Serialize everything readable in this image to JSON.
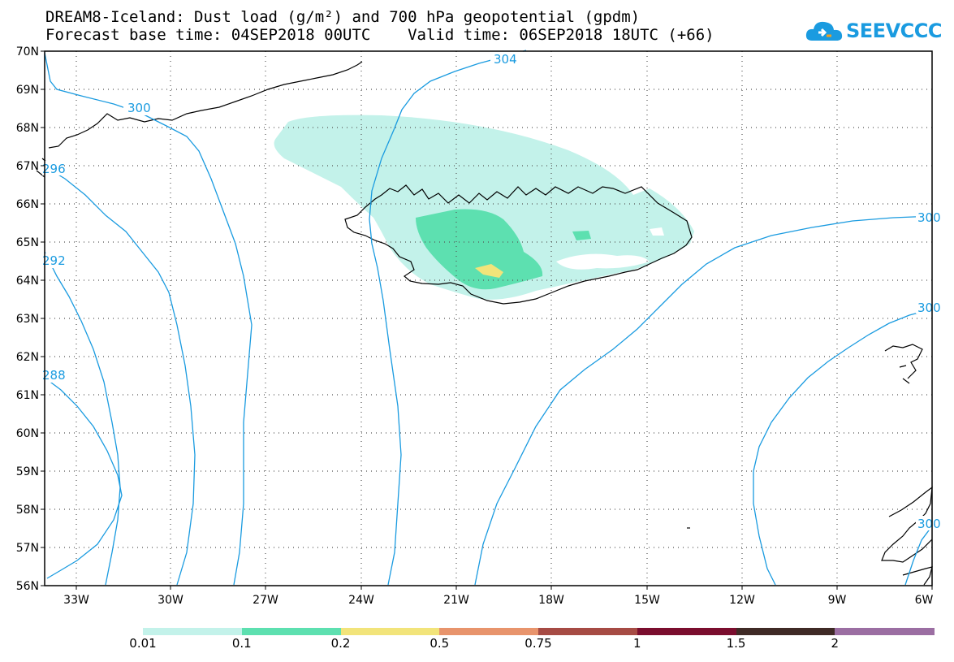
{
  "title_line1": "DREAM8-Iceland: Dust load (g/m²) and 700 hPa geopotential (gpdm)",
  "title_line2": "Forecast base time: 04SEP2018 00UTC    Valid time: 06SEP2018 18UTC (+66)",
  "logo_text": "SEEVCCC",
  "lat_labels": [
    "70N",
    "69N",
    "68N",
    "67N",
    "66N",
    "65N",
    "64N",
    "63N",
    "62N",
    "61N",
    "60N",
    "59N",
    "58N",
    "57N",
    "56N"
  ],
  "lon_labels": [
    "33W",
    "30W",
    "27W",
    "24W",
    "21W",
    "18W",
    "15W",
    "12W",
    "9W",
    "6W"
  ],
  "contour_labels": [
    "300",
    "304",
    "296",
    "292",
    "288",
    "300",
    "300",
    "300"
  ],
  "colorbar": {
    "colors": [
      "#c3f2ea",
      "#5de0b0",
      "#f2e47a",
      "#e8946c",
      "#a64b44",
      "#7a0d2e",
      "#3f2a26",
      "#9b6ea2"
    ],
    "labels": [
      "0.01",
      "0.1",
      "0.2",
      "0.5",
      "0.75",
      "1",
      "1.5",
      "2"
    ]
  },
  "map_colors": {
    "contour": "#1a9be0",
    "coast": "#000000",
    "dust_low": "#c3f2ea",
    "dust_mid": "#5de0b0",
    "dust_high": "#f2e47a"
  }
}
